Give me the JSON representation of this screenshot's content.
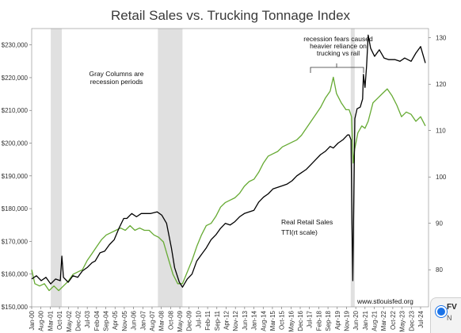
{
  "chart_data": {
    "type": "line",
    "title": "Retail Sales vs. Trucking Tonnage Index",
    "y_left": {
      "ticks": [
        "$150,000",
        "$160,000",
        "$170,000",
        "$180,000",
        "$190,000",
        "$200,000",
        "$210,000",
        "$220,000",
        "$230,000"
      ],
      "range": [
        150000,
        235000
      ]
    },
    "y_right": {
      "ticks": [
        "80",
        "90",
        "100",
        "110",
        "120",
        "130"
      ],
      "range": [
        72,
        132
      ]
    },
    "x_range": [
      2000.0,
      2025.0
    ],
    "x_ticks": [
      "Jan-00",
      "Aug-00",
      "Mar-01",
      "Oct-01",
      "May-02",
      "Dec-02",
      "Jul-03",
      "Feb-04",
      "Sep-04",
      "Apr-05",
      "Nov-05",
      "Jun-06",
      "Jan-07",
      "Aug-07",
      "Mar-08",
      "Oct-08",
      "May-09",
      "Dec-09",
      "Jul-10",
      "Feb-11",
      "Sep-11",
      "Apr-12",
      "Nov-12",
      "Jun-13",
      "Jan-14",
      "Aug-14",
      "Mar-15",
      "Oct-15",
      "May-16",
      "Dec-16",
      "Jul-17",
      "Feb-18",
      "Sep-18",
      "Apr-19",
      "Nov-19",
      "Jun-20",
      "Jan-21",
      "Aug-21",
      "Mar-22",
      "Oct-22",
      "May-23",
      "Dec-23",
      "Jul-24"
    ],
    "recessions": [
      [
        2001.2,
        2001.9
      ],
      [
        2007.95,
        2009.5
      ],
      [
        2020.1,
        2020.35
      ]
    ],
    "series": [
      {
        "name": "Real Retail Sales",
        "axis": "left",
        "color": "#000000",
        "points": [
          [
            2000.0,
            158500
          ],
          [
            2000.3,
            159500
          ],
          [
            2000.6,
            158000
          ],
          [
            2000.9,
            159000
          ],
          [
            2001.2,
            157000
          ],
          [
            2001.5,
            158500
          ],
          [
            2001.8,
            158000
          ],
          [
            2001.9,
            165500
          ],
          [
            2002.0,
            159000
          ],
          [
            2002.3,
            157500
          ],
          [
            2002.6,
            159500
          ],
          [
            2002.9,
            159000
          ],
          [
            2003.2,
            161000
          ],
          [
            2003.5,
            162000
          ],
          [
            2003.8,
            163500
          ],
          [
            2004.0,
            164000
          ],
          [
            2004.3,
            166500
          ],
          [
            2004.6,
            167000
          ],
          [
            2004.9,
            169000
          ],
          [
            2005.2,
            170500
          ],
          [
            2005.5,
            174000
          ],
          [
            2005.8,
            177000
          ],
          [
            2006.0,
            177000
          ],
          [
            2006.3,
            178500
          ],
          [
            2006.6,
            177500
          ],
          [
            2006.9,
            178500
          ],
          [
            2007.2,
            178500
          ],
          [
            2007.5,
            178500
          ],
          [
            2007.9,
            179000
          ],
          [
            2008.2,
            178000
          ],
          [
            2008.5,
            175500
          ],
          [
            2008.8,
            168000
          ],
          [
            2009.0,
            162000
          ],
          [
            2009.3,
            157500
          ],
          [
            2009.5,
            156000
          ],
          [
            2009.8,
            158500
          ],
          [
            2010.1,
            160000
          ],
          [
            2010.4,
            164000
          ],
          [
            2010.7,
            166000
          ],
          [
            2011.0,
            168000
          ],
          [
            2011.3,
            170500
          ],
          [
            2011.6,
            172000
          ],
          [
            2011.9,
            174000
          ],
          [
            2012.2,
            175500
          ],
          [
            2012.5,
            175000
          ],
          [
            2012.8,
            176000
          ],
          [
            2013.1,
            177500
          ],
          [
            2013.4,
            178500
          ],
          [
            2013.7,
            179000
          ],
          [
            2014.0,
            179500
          ],
          [
            2014.3,
            182000
          ],
          [
            2014.6,
            183500
          ],
          [
            2014.9,
            184500
          ],
          [
            2015.2,
            186000
          ],
          [
            2015.5,
            186500
          ],
          [
            2015.8,
            187000
          ],
          [
            2016.1,
            187500
          ],
          [
            2016.4,
            188500
          ],
          [
            2016.7,
            190000
          ],
          [
            2017.0,
            191000
          ],
          [
            2017.3,
            192000
          ],
          [
            2017.6,
            193500
          ],
          [
            2017.9,
            195000
          ],
          [
            2018.2,
            196500
          ],
          [
            2018.5,
            197500
          ],
          [
            2018.8,
            199000
          ],
          [
            2019.0,
            198500
          ],
          [
            2019.3,
            200000
          ],
          [
            2019.6,
            201000
          ],
          [
            2019.9,
            202500
          ],
          [
            2020.0,
            202500
          ],
          [
            2020.12,
            201000
          ],
          [
            2020.18,
            175000
          ],
          [
            2020.23,
            158000
          ],
          [
            2020.3,
            185000
          ],
          [
            2020.36,
            207500
          ],
          [
            2020.5,
            210500
          ],
          [
            2020.7,
            211000
          ],
          [
            2020.85,
            213500
          ],
          [
            2020.9,
            221000
          ],
          [
            2021.0,
            217000
          ],
          [
            2021.1,
            223500
          ],
          [
            2021.2,
            233000
          ],
          [
            2021.35,
            229000
          ],
          [
            2021.6,
            226500
          ],
          [
            2021.9,
            228500
          ],
          [
            2022.2,
            226000
          ],
          [
            2022.5,
            225500
          ],
          [
            2022.9,
            225500
          ],
          [
            2023.2,
            225000
          ],
          [
            2023.5,
            226000
          ],
          [
            2023.9,
            225000
          ],
          [
            2024.2,
            227500
          ],
          [
            2024.5,
            229500
          ],
          [
            2024.8,
            224500
          ]
        ]
      },
      {
        "name": "TTI(rt scale)",
        "axis": "right",
        "color": "#66aa33",
        "points": [
          [
            2000.0,
            80
          ],
          [
            2000.2,
            77
          ],
          [
            2000.5,
            76.5
          ],
          [
            2000.8,
            77
          ],
          [
            2001.1,
            75.5
          ],
          [
            2001.4,
            76.5
          ],
          [
            2001.7,
            75.5
          ],
          [
            2002.0,
            76.5
          ],
          [
            2002.3,
            77.5
          ],
          [
            2002.6,
            79
          ],
          [
            2002.9,
            79.5
          ],
          [
            2003.2,
            80
          ],
          [
            2003.5,
            82
          ],
          [
            2003.8,
            83.5
          ],
          [
            2004.1,
            85
          ],
          [
            2004.4,
            86.5
          ],
          [
            2004.7,
            87.5
          ],
          [
            2005.0,
            88
          ],
          [
            2005.3,
            88.5
          ],
          [
            2005.6,
            89
          ],
          [
            2005.9,
            88.5
          ],
          [
            2006.2,
            89.5
          ],
          [
            2006.5,
            88.5
          ],
          [
            2006.8,
            89
          ],
          [
            2007.1,
            88.5
          ],
          [
            2007.4,
            88.5
          ],
          [
            2007.7,
            87.5
          ],
          [
            2008.0,
            87
          ],
          [
            2008.3,
            86
          ],
          [
            2008.6,
            82.5
          ],
          [
            2008.9,
            79
          ],
          [
            2009.2,
            77
          ],
          [
            2009.5,
            77
          ],
          [
            2009.8,
            79.5
          ],
          [
            2010.1,
            82
          ],
          [
            2010.4,
            85
          ],
          [
            2010.7,
            87.5
          ],
          [
            2011.0,
            89.5
          ],
          [
            2011.3,
            90
          ],
          [
            2011.6,
            91.5
          ],
          [
            2011.9,
            93.5
          ],
          [
            2012.2,
            94.5
          ],
          [
            2012.5,
            95
          ],
          [
            2012.8,
            95.5
          ],
          [
            2013.1,
            96.5
          ],
          [
            2013.4,
            98
          ],
          [
            2013.7,
            99
          ],
          [
            2014.0,
            99.5
          ],
          [
            2014.3,
            101
          ],
          [
            2014.6,
            103
          ],
          [
            2014.9,
            104.5
          ],
          [
            2015.2,
            105
          ],
          [
            2015.5,
            105.5
          ],
          [
            2015.8,
            106.5
          ],
          [
            2016.1,
            107
          ],
          [
            2016.4,
            107.5
          ],
          [
            2016.7,
            108
          ],
          [
            2017.0,
            109
          ],
          [
            2017.3,
            110.5
          ],
          [
            2017.6,
            112
          ],
          [
            2017.9,
            113.5
          ],
          [
            2018.2,
            115
          ],
          [
            2018.5,
            117
          ],
          [
            2018.8,
            118.5
          ],
          [
            2019.0,
            121.5
          ],
          [
            2019.2,
            118
          ],
          [
            2019.5,
            116
          ],
          [
            2019.8,
            114.5
          ],
          [
            2020.0,
            114.5
          ],
          [
            2020.15,
            113
          ],
          [
            2020.25,
            103
          ],
          [
            2020.35,
            106
          ],
          [
            2020.55,
            109.5
          ],
          [
            2020.8,
            111
          ],
          [
            2021.0,
            110.5
          ],
          [
            2021.2,
            112
          ],
          [
            2021.5,
            116
          ],
          [
            2021.8,
            117
          ],
          [
            2022.1,
            118
          ],
          [
            2022.4,
            119
          ],
          [
            2022.7,
            117.5
          ],
          [
            2023.0,
            115.5
          ],
          [
            2023.3,
            113
          ],
          [
            2023.6,
            114
          ],
          [
            2023.9,
            113.5
          ],
          [
            2024.2,
            112
          ],
          [
            2024.5,
            113
          ],
          [
            2024.8,
            111
          ]
        ]
      }
    ],
    "legend": [
      "Real Retail Sales",
      "TTI(rt scale)"
    ],
    "annotations": {
      "gray_columns": [
        "Gray Columns are",
        "recession periods"
      ],
      "recession_fears": [
        "recession fears caused",
        "heavier reliance on",
        "trucking vs rail"
      ],
      "source": "www.stlouisfed.org"
    }
  },
  "colors": {
    "retail": "#000000",
    "tti": "#66aa33",
    "recession_band": "#e0e0e0",
    "title": "#3a3a3a"
  },
  "corner_widget": {
    "label": "FV",
    "sub": "N"
  }
}
